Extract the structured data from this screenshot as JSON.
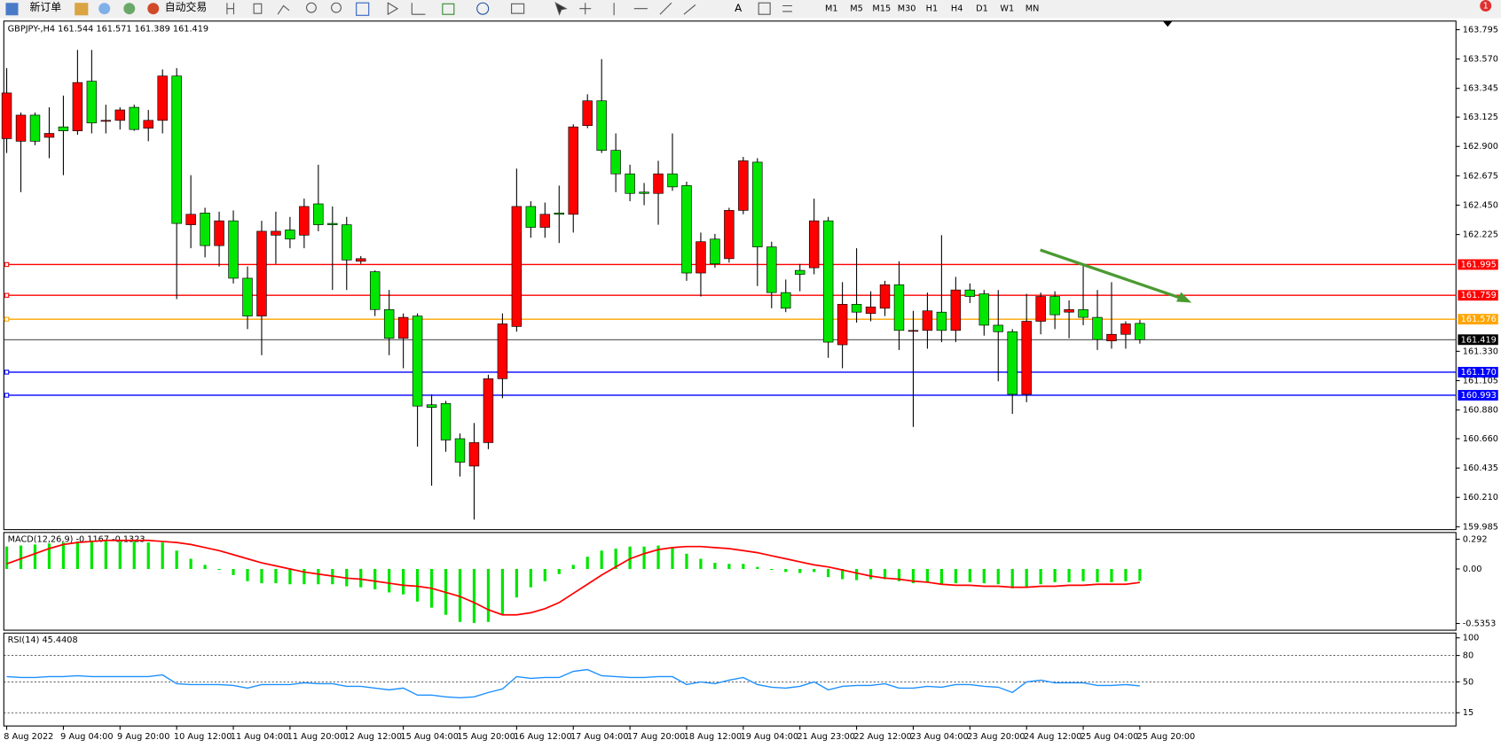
{
  "toolbar": {
    "new_order": "新订单",
    "auto_trading": "自动交易",
    "timeframes": [
      "M1",
      "M5",
      "M15",
      "M30",
      "H1",
      "H4",
      "D1",
      "W1",
      "MN"
    ],
    "notification_count": 1
  },
  "chart_data": [
    {
      "type": "candlestick",
      "title": "GBPJPY-,H4 161.544 161.571 161.389 161.419",
      "categories": [
        "8 Aug 2022",
        null,
        null,
        null,
        "9 Aug 04:00",
        null,
        null,
        null,
        "9 Aug 20:00",
        null,
        null,
        null,
        "10 Aug 12:00",
        null,
        null,
        null,
        "11 Aug 04:00",
        null,
        null,
        null,
        "11 Aug 20:00",
        null,
        null,
        null,
        "12 Aug 12:00",
        null,
        null,
        null,
        "15 Aug 04:00",
        null,
        null,
        null,
        "15 Aug 20:00",
        null,
        null,
        null,
        "16 Aug 12:00",
        null,
        null,
        null,
        "17 Aug 04:00",
        null,
        null,
        null,
        "17 Aug 20:00",
        null,
        null,
        null,
        "18 Aug 12:00",
        null,
        null,
        null,
        "19 Aug 04:00",
        null,
        null,
        null,
        "21 Aug 23:00",
        null,
        null,
        null,
        "22 Aug 12:00",
        null,
        null,
        null,
        "23 Aug 04:00",
        null,
        null,
        null,
        "23 Aug 20:00",
        null,
        null,
        null,
        "24 Aug 12:00",
        null,
        null,
        null,
        "25 Aug 04:00",
        null,
        null,
        null,
        "25 Aug 20:00"
      ],
      "open": [
        162.96,
        162.94,
        163.14,
        162.97,
        163.05,
        163.02,
        163.4,
        163.1,
        163.1,
        163.2,
        163.04,
        163.1,
        163.44,
        162.3,
        162.39,
        162.14,
        162.33,
        161.89,
        161.6,
        162.22,
        162.26,
        162.22,
        162.46,
        162.31,
        162.3,
        162.02,
        161.94,
        161.65,
        161.43,
        161.6,
        160.92,
        160.93,
        160.66,
        160.45,
        160.63,
        161.12,
        161.52,
        162.44,
        162.28,
        162.39,
        162.38,
        163.06,
        163.25,
        162.87,
        162.69,
        162.55,
        162.54,
        162.69,
        162.6,
        161.93,
        162.19,
        162.04,
        162.41,
        162.78,
        162.13,
        161.78,
        161.95,
        161.97,
        162.33,
        161.38,
        161.69,
        161.62,
        161.66,
        161.84,
        161.49,
        161.49,
        161.63,
        161.49,
        161.8,
        161.77,
        161.53,
        161.48,
        161.0,
        161.56,
        161.75,
        161.63,
        161.65,
        161.59,
        161.41,
        161.46,
        161.544
      ],
      "high": [
        163.5,
        163.16,
        163.16,
        163.2,
        163.29,
        163.64,
        163.64,
        163.22,
        163.2,
        163.22,
        163.18,
        163.49,
        163.5,
        162.68,
        162.43,
        162.4,
        162.41,
        161.98,
        162.33,
        162.4,
        162.36,
        162.5,
        162.76,
        162.44,
        162.36,
        162.06,
        161.95,
        161.8,
        161.62,
        161.62,
        161.0,
        160.95,
        160.7,
        160.78,
        161.15,
        161.62,
        162.73,
        162.48,
        162.47,
        162.6,
        163.07,
        163.3,
        163.57,
        163.0,
        162.76,
        162.62,
        162.79,
        163.0,
        162.63,
        162.24,
        162.23,
        162.43,
        162.82,
        162.81,
        162.17,
        161.88,
        162.0,
        162.5,
        162.36,
        161.86,
        162.12,
        161.79,
        161.87,
        162.02,
        161.64,
        161.78,
        162.22,
        161.9,
        161.85,
        161.8,
        161.8,
        161.5,
        161.77,
        161.78,
        161.79,
        161.72,
        161.99,
        161.8,
        161.86,
        161.56,
        161.571
      ],
      "low": [
        162.85,
        162.55,
        162.91,
        162.81,
        162.68,
        162.99,
        163.0,
        163.0,
        163.03,
        163.02,
        162.94,
        163.0,
        161.73,
        162.12,
        162.05,
        161.98,
        161.85,
        161.5,
        161.3,
        162.0,
        162.12,
        162.12,
        162.25,
        161.8,
        161.8,
        162.0,
        161.6,
        161.3,
        161.2,
        160.6,
        160.3,
        160.56,
        160.37,
        160.04,
        160.58,
        160.97,
        161.48,
        162.2,
        162.2,
        162.16,
        162.24,
        163.04,
        162.85,
        162.55,
        162.48,
        162.45,
        162.3,
        162.56,
        161.87,
        161.75,
        161.97,
        162.01,
        162.38,
        161.83,
        161.66,
        161.63,
        161.79,
        161.92,
        161.28,
        161.2,
        161.55,
        161.56,
        161.6,
        161.34,
        160.75,
        161.35,
        161.4,
        161.4,
        161.7,
        161.45,
        161.1,
        160.85,
        160.94,
        161.46,
        161.5,
        161.43,
        161.53,
        161.34,
        161.35,
        161.35,
        161.389
      ],
      "close": [
        163.31,
        163.14,
        162.94,
        163.0,
        163.02,
        163.39,
        163.08,
        163.1,
        163.18,
        163.03,
        163.1,
        163.44,
        162.31,
        162.38,
        162.14,
        162.33,
        161.89,
        161.6,
        162.25,
        162.25,
        162.19,
        162.44,
        162.3,
        162.3,
        162.03,
        162.04,
        161.65,
        161.43,
        161.59,
        160.91,
        160.9,
        160.65,
        160.48,
        160.63,
        161.12,
        161.54,
        162.44,
        162.28,
        162.38,
        162.38,
        163.05,
        163.25,
        162.87,
        162.69,
        162.54,
        162.54,
        162.69,
        162.59,
        161.93,
        162.17,
        162.0,
        162.41,
        162.79,
        162.13,
        161.78,
        161.66,
        161.92,
        162.33,
        161.4,
        161.69,
        161.63,
        161.67,
        161.84,
        161.49,
        161.49,
        161.64,
        161.49,
        161.8,
        161.75,
        161.53,
        161.48,
        161.0,
        161.56,
        161.75,
        161.61,
        161.65,
        161.59,
        161.42,
        161.46,
        161.54,
        161.419
      ],
      "up_color": "#ff0000",
      "down_color": "#00e600",
      "ylim": [
        159.985,
        163.795
      ],
      "yticks": [
        163.795,
        {
          "value": 163.57,
          "label": "163.570"
        },
        163.345,
        163.125,
        {
          "value": 162.9,
          "label": "162.900"
        },
        162.675,
        {
          "value": 162.45,
          "label": "162.450"
        },
        162.225,
        {
          "value": 161.33,
          "label": "161.330"
        },
        161.105,
        {
          "value": 160.88,
          "label": "160.880"
        },
        {
          "value": 160.66,
          "label": "160.660"
        },
        160.435,
        {
          "value": 160.21,
          "label": "160.210"
        },
        159.985
      ],
      "levels": [
        {
          "value": 161.995,
          "color": "#ff0000"
        },
        {
          "value": 161.759,
          "color": "#ff0000"
        },
        {
          "value": 161.576,
          "color": "#ffa500"
        },
        {
          "value": 161.17,
          "label": "161.170",
          "color": "#0000ff"
        },
        {
          "value": 160.993,
          "color": "#0000ff"
        }
      ]
    },
    {
      "type": "macd",
      "title": "MACD(12,26,9) -0.1167 -0.1323",
      "histogram": [
        0.22,
        0.23,
        0.24,
        0.25,
        0.26,
        0.27,
        0.28,
        0.28,
        0.27,
        0.27,
        0.26,
        0.26,
        0.18,
        0.1,
        0.04,
        -0.01,
        -0.06,
        -0.12,
        -0.14,
        -0.14,
        -0.15,
        -0.15,
        -0.15,
        -0.15,
        -0.17,
        -0.18,
        -0.2,
        -0.23,
        -0.25,
        -0.32,
        -0.38,
        -0.45,
        -0.52,
        -0.53,
        -0.52,
        -0.45,
        -0.28,
        -0.18,
        -0.12,
        -0.05,
        0.04,
        0.12,
        0.18,
        0.2,
        0.22,
        0.22,
        0.23,
        0.21,
        0.15,
        0.1,
        0.06,
        0.05,
        0.05,
        0.02,
        -0.01,
        -0.03,
        -0.04,
        -0.03,
        -0.08,
        -0.1,
        -0.11,
        -0.1,
        -0.1,
        -0.12,
        -0.14,
        -0.13,
        -0.15,
        -0.14,
        -0.13,
        -0.14,
        -0.15,
        -0.19,
        -0.18,
        -0.15,
        -0.13,
        -0.13,
        -0.12,
        -0.13,
        -0.13,
        -0.12,
        -0.1167
      ],
      "signal": [
        0.05,
        0.1,
        0.15,
        0.2,
        0.24,
        0.26,
        0.27,
        0.28,
        0.28,
        0.28,
        0.28,
        0.27,
        0.26,
        0.24,
        0.21,
        0.18,
        0.14,
        0.1,
        0.06,
        0.03,
        0.0,
        -0.03,
        -0.05,
        -0.07,
        -0.09,
        -0.1,
        -0.12,
        -0.14,
        -0.16,
        -0.17,
        -0.19,
        -0.23,
        -0.27,
        -0.33,
        -0.4,
        -0.45,
        -0.45,
        -0.43,
        -0.39,
        -0.33,
        -0.24,
        -0.15,
        -0.06,
        0.02,
        0.1,
        0.15,
        0.19,
        0.21,
        0.22,
        0.22,
        0.21,
        0.2,
        0.18,
        0.16,
        0.13,
        0.1,
        0.07,
        0.04,
        0.02,
        -0.01,
        -0.04,
        -0.07,
        -0.09,
        -0.1,
        -0.12,
        -0.13,
        -0.15,
        -0.16,
        -0.16,
        -0.17,
        -0.17,
        -0.18,
        -0.18,
        -0.17,
        -0.17,
        -0.16,
        -0.16,
        -0.15,
        -0.15,
        -0.15,
        -0.1323
      ],
      "histogram_color": "#00e600",
      "signal_color": "#ff0000",
      "ylim": [
        -0.5353,
        0.292
      ],
      "yticks": [
        0.292,
        {
          "value": 0,
          "label": "0.00"
        },
        -0.5353
      ]
    },
    {
      "type": "line",
      "title": "RSI(14) 45.4408",
      "values": [
        56,
        55,
        55,
        56,
        56,
        57,
        56,
        56,
        56,
        56,
        56,
        58,
        48,
        47,
        47,
        47,
        46,
        43,
        47,
        47,
        47,
        49,
        48,
        48,
        45,
        45,
        43,
        41,
        43,
        35,
        35,
        33,
        32,
        33,
        38,
        42,
        56,
        54,
        55,
        55,
        62,
        64,
        57,
        56,
        55,
        55,
        56,
        56,
        47,
        50,
        48,
        52,
        55,
        47,
        44,
        43,
        45,
        50,
        41,
        45,
        46,
        46,
        48,
        43,
        43,
        45,
        44,
        47,
        47,
        45,
        44,
        38,
        50,
        52,
        49,
        49,
        49,
        46,
        46,
        47,
        45.4408
      ],
      "color": "#1e90ff",
      "ylim": [
        0,
        100
      ],
      "yticks": [
        15,
        50,
        80,
        100
      ]
    }
  ]
}
